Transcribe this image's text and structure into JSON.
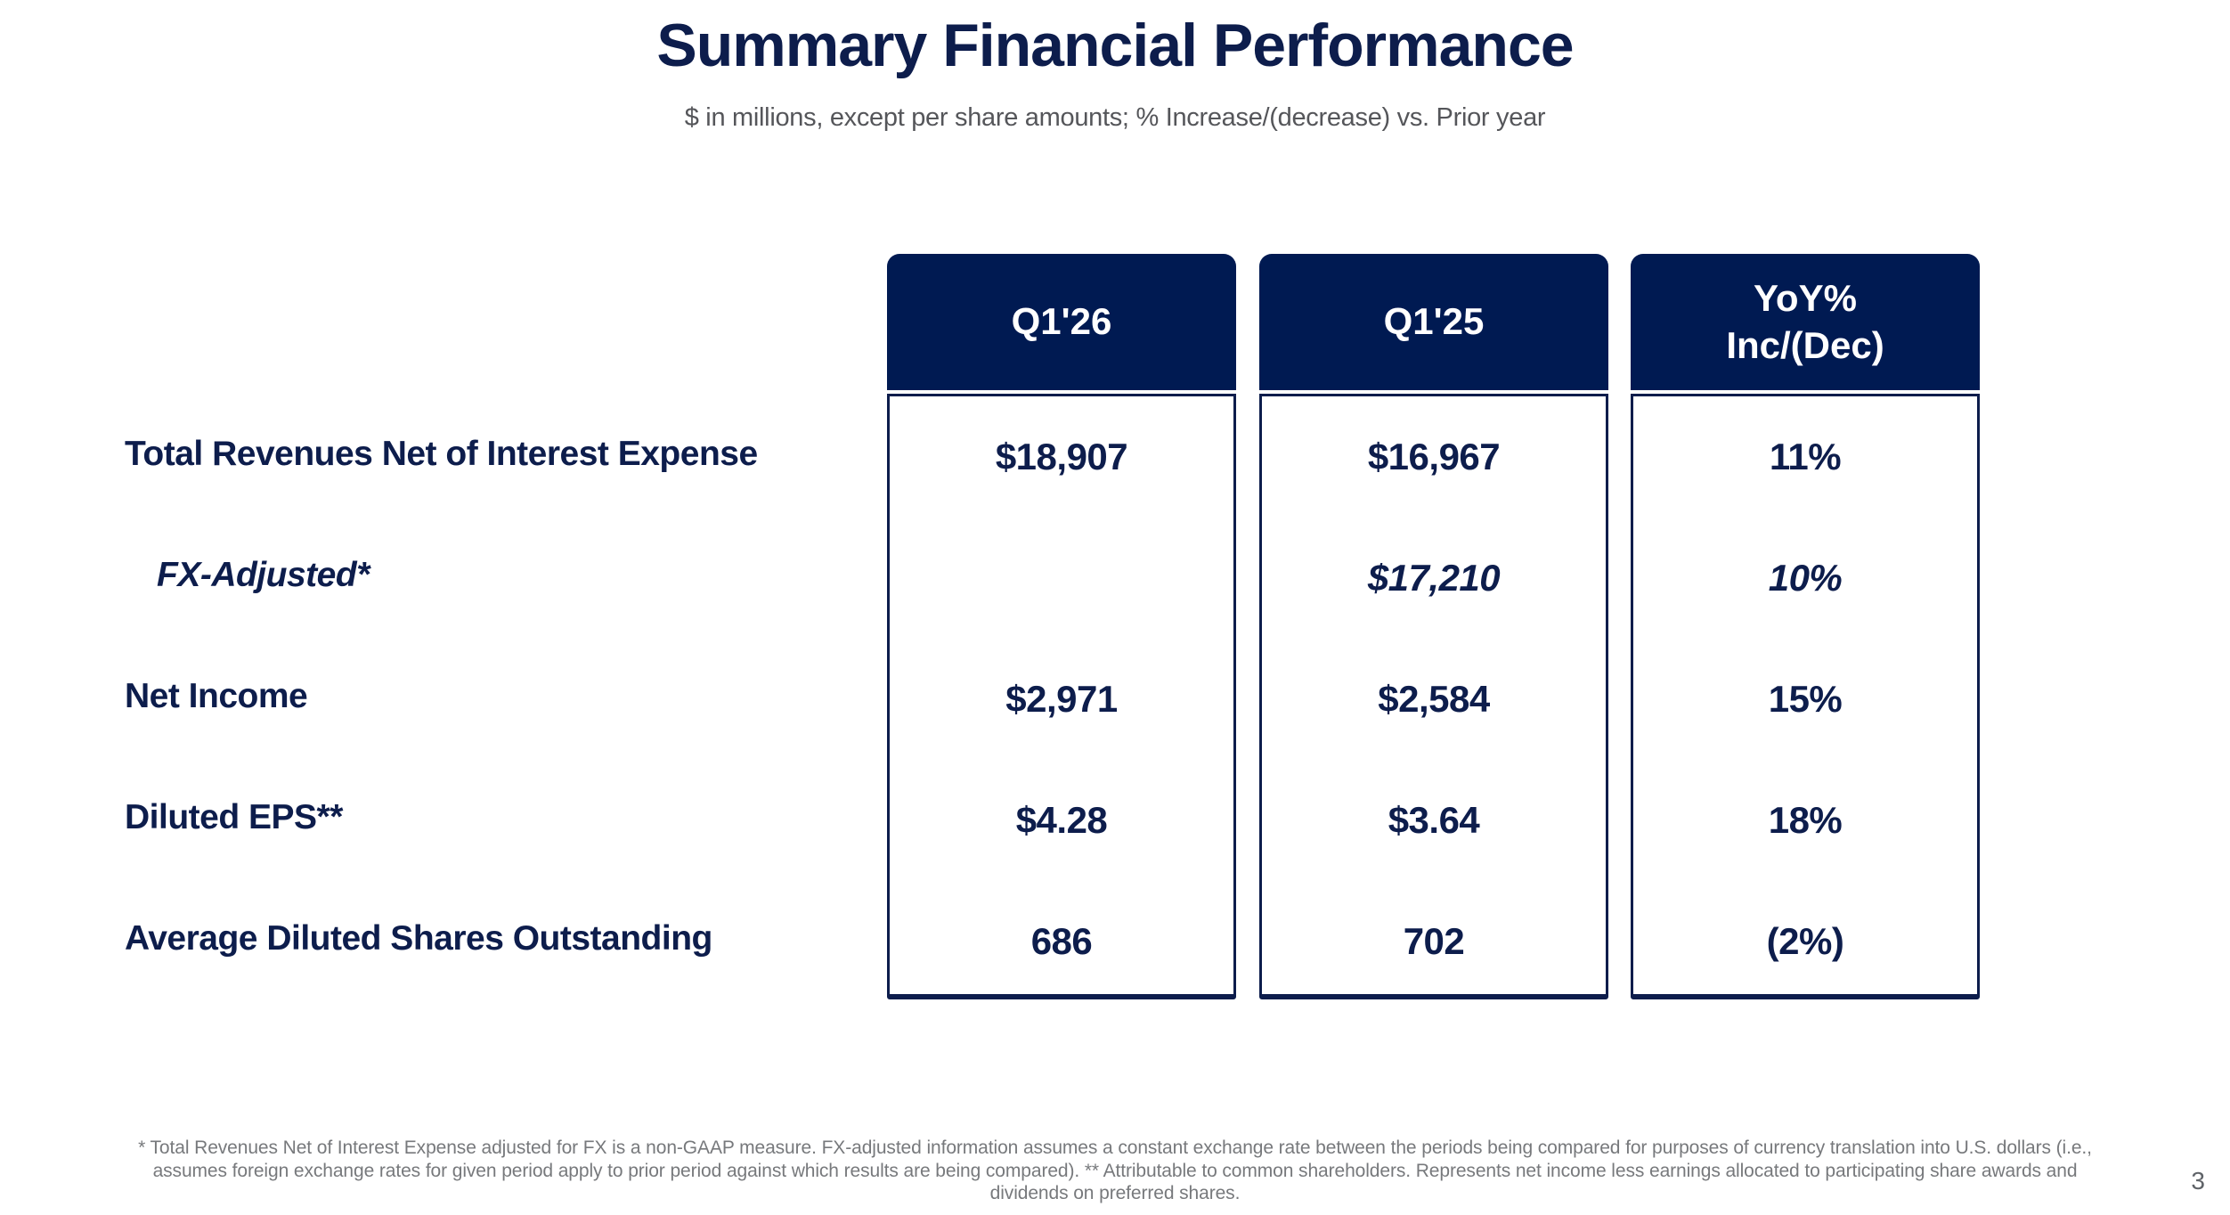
{
  "title": "Summary Financial Performance",
  "subtitle": "$ in millions, except per share amounts; % Increase/(decrease) vs. Prior year",
  "colors": {
    "header_navy": "#001a52",
    "text_navy": "#0d1d4c",
    "subtitle_gray": "#55565a",
    "footnote_gray": "#77797c"
  },
  "table": {
    "columns": [
      {
        "header": "Q1'26"
      },
      {
        "header": "Q1'25"
      },
      {
        "header": "YoY%\nInc/(Dec)"
      }
    ],
    "rows": [
      {
        "label": "Total Revenues Net of Interest Expense",
        "q1_26": "$18,907",
        "q1_25": "$16,967",
        "yoy": "11%"
      },
      {
        "label": "FX-Adjusted*",
        "q1_26": "",
        "q1_25": "$17,210",
        "yoy": "10%"
      },
      {
        "label": "Net Income",
        "q1_26": "$2,971",
        "q1_25": "$2,584",
        "yoy": "15%"
      },
      {
        "label": "Diluted EPS**",
        "q1_26": "$4.28",
        "q1_25": "$3.64",
        "yoy": "18%"
      },
      {
        "label": "Average Diluted Shares Outstanding",
        "q1_26": "686",
        "q1_25": "702",
        "yoy": "(2%)"
      }
    ]
  },
  "footnote": "* Total Revenues Net of Interest Expense adjusted for FX is a non-GAAP measure. FX-adjusted information assumes a constant exchange rate between the periods being compared for purposes of currency translation into U.S. dollars (i.e., assumes foreign exchange rates for given period apply to prior period against which results are being compared). ** Attributable to common shareholders. Represents net income less earnings allocated to participating share awards and dividends on preferred shares.",
  "page_number": "3"
}
